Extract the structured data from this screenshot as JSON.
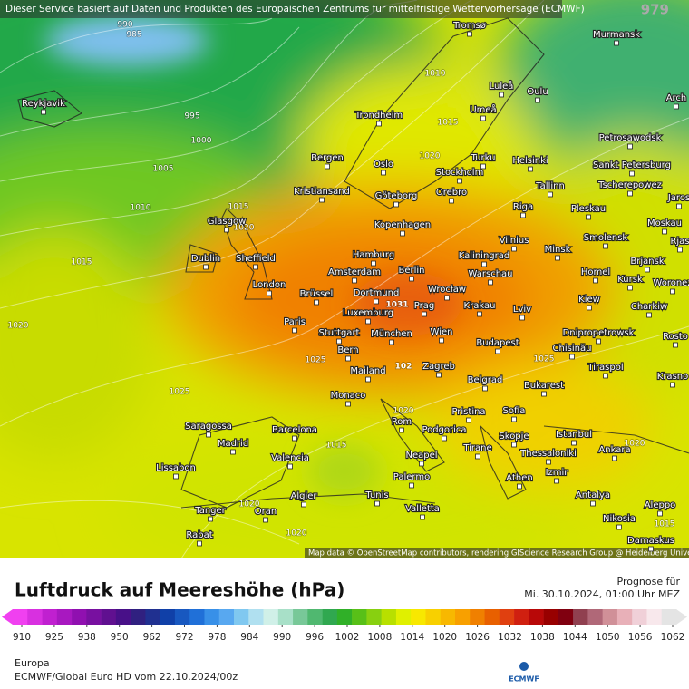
{
  "header": {
    "notice": "Dieser Service basiert auf Daten und Produkten des Europäischen Zentrums für mittelfristige Wettervorhersage (ECMWF)",
    "corner": "979"
  },
  "map": {
    "cities": [
      "Tromsø",
      "Murmansk",
      "Arch",
      "Reykjavik",
      "Luleå",
      "Oulu",
      "Umeå",
      "Trondheim",
      "Petrosawodsk",
      "Bergen",
      "Oslo",
      "Turku",
      "Helsinki",
      "Sankt Petersburg",
      "Stockholm",
      "Kristiansand",
      "Göteborg",
      "Orebro",
      "Tallinn",
      "Tscherepowez",
      "Jaros",
      "Glasgow",
      "Riga",
      "Pleskau",
      "Kopenhagen",
      "Moskau",
      "Smolensk",
      "Rjas",
      "Vilnius",
      "Minsk",
      "Dublin",
      "Sheffield",
      "Hamburg",
      "Kaliningrad",
      "Brjansk",
      "Amsterdam",
      "Berlin",
      "Warschau",
      "Homel",
      "Kursk",
      "Woronez",
      "London",
      "Brüssel",
      "Dortmund",
      "Wrocław",
      "Kiew",
      "Charkiw",
      "Krakau",
      "Luxemburg",
      "Prag",
      "Lviv",
      "Paris",
      "Stuttgart",
      "München",
      "Wien",
      "Dnipropetrowsk",
      "Rosto",
      "Chisinău",
      "Budapest",
      "Bern",
      "Mailand",
      "Zagreb",
      "Tiraspol",
      "Krasno",
      "Belgrad",
      "Bukarest",
      "Monaco",
      "Pristina",
      "Sofia",
      "Saragossa",
      "Barcelona",
      "Rom",
      "Podgorica",
      "Istanbul",
      "Skopje",
      "Madrid",
      "Tirane",
      "Ankara",
      "Neapel",
      "Thessaloniki",
      "Valencia",
      "Lissabon",
      "Izmir",
      "Palermo",
      "Athen",
      "Antalya",
      "Algier",
      "Tunis",
      "Tanger",
      "Oran",
      "Valletta",
      "Aleppo",
      "Nikosia",
      "Rabat",
      "Damaskus"
    ],
    "isobar_labels": [
      990,
      985,
      995,
      1000,
      1005,
      1010,
      1015,
      1020,
      1025,
      1025,
      1015,
      1020,
      1010,
      1015,
      1020,
      1025,
      1020,
      1015,
      1020,
      1020,
      1015,
      1020,
      1031,
      102
    ],
    "attribution": "Map data © OpenStreetMap contributors, rendering GIScience Research Group @ Heidelberg University"
  },
  "footer": {
    "title": "Luftdruck auf Meereshöhe (hPa)",
    "forecast_label": "Prognose für",
    "forecast_time": "Mi. 30.10.2024, 01:00 Uhr MEZ",
    "region": "Europa",
    "model": "ECMWF/Global Euro HD vom  22.10.2024/00z",
    "logo": "ECMWF"
  },
  "legend": {
    "ticks": [
      910,
      925,
      938,
      950,
      962,
      972,
      978,
      984,
      990,
      996,
      1002,
      1008,
      1014,
      1020,
      1026,
      1032,
      1038,
      1044,
      1050,
      1056,
      1062
    ],
    "colors": [
      "#f040f0",
      "#d830e0",
      "#c020d0",
      "#a818c0",
      "#9010b0",
      "#7810a0",
      "#601090",
      "#481088",
      "#302080",
      "#203090",
      "#1040a8",
      "#1858c0",
      "#2070d8",
      "#3890e8",
      "#58a8f0",
      "#80c8f0",
      "#b0e0f0",
      "#d0f0e8",
      "#a8e0c8",
      "#78c898",
      "#50b870",
      "#30a850",
      "#30b028",
      "#58c018",
      "#88d010",
      "#b8e000",
      "#e0f000",
      "#f8e800",
      "#f8d000",
      "#f8b800",
      "#f8a000",
      "#f08000",
      "#e86000",
      "#e04010",
      "#d02010",
      "#b80808",
      "#980000",
      "#800010",
      "#904050",
      "#b06878",
      "#d09098",
      "#e8b0b8",
      "#f0d0d8",
      "#f8e8ec",
      "#e4e4e4"
    ]
  }
}
